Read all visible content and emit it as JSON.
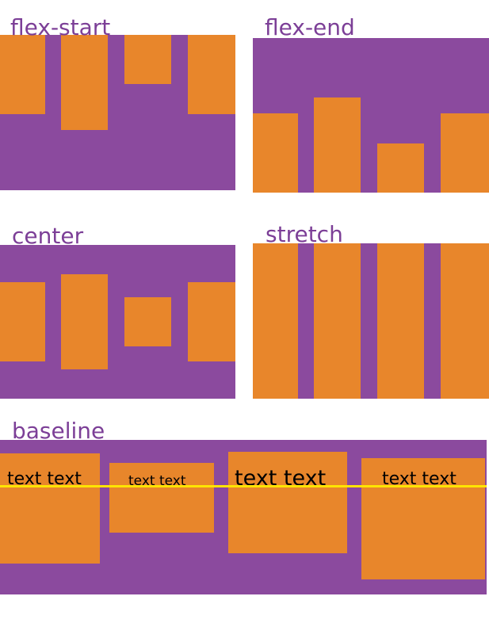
{
  "figure": {
    "description": "flexbox align-items values illustration"
  },
  "panels": [
    {
      "label": "flex-start"
    },
    {
      "label": "flex-end"
    },
    {
      "label": "center"
    },
    {
      "label": "stretch"
    },
    {
      "label": "baseline"
    }
  ],
  "baseline_items": [
    {
      "text": "text text"
    },
    {
      "text": "text text"
    },
    {
      "text": "text text"
    },
    {
      "text": "text text"
    }
  ],
  "colors": {
    "background": "#ffffff",
    "container_purple": "#8b4a9e",
    "item_orange": "#e8862b",
    "label_purple": "#7c3f97",
    "baseline_line_yellow": "#ffe400",
    "item_text_black": "#000000"
  }
}
